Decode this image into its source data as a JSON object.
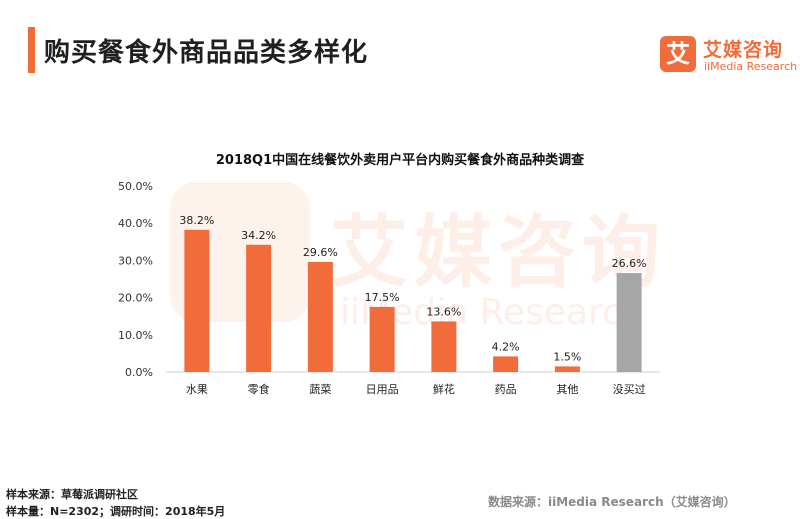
{
  "page": {
    "title": "购买餐食外商品品类多样化"
  },
  "logo": {
    "badge_char": "艾",
    "name_cn": "艾媒咨询",
    "name_en": "iiMedia Research"
  },
  "colors": {
    "accent": "#f26b3a",
    "bar_primary": "#f26b3a",
    "bar_secondary": "#a6a6a6"
  },
  "chart_data": {
    "type": "bar",
    "title": "2018Q1中国在线餐饮外卖用户平台内购买餐食外商品种类调查",
    "categories": [
      "水果",
      "零食",
      "蔬菜",
      "日用品",
      "鲜花",
      "药品",
      "其他",
      "没买过"
    ],
    "values": [
      38.2,
      34.2,
      29.6,
      17.5,
      13.6,
      4.2,
      1.5,
      26.6
    ],
    "value_labels": [
      "38.2%",
      "34.2%",
      "29.6%",
      "17.5%",
      "13.6%",
      "4.2%",
      "1.5%",
      "26.6%"
    ],
    "y_ticks": [
      "0.0%",
      "10.0%",
      "20.0%",
      "30.0%",
      "40.0%",
      "50.0%"
    ],
    "ylim": [
      0,
      50
    ],
    "grid": false,
    "legend": "none",
    "highlight_category": "没买过"
  },
  "footer": {
    "sample_source": "样本来源：草莓派调研社区",
    "sample_size": "样本量：N=2302；调研时间：2018年5月",
    "data_source": "数据来源：iiMedia Research（艾媒咨询）"
  }
}
